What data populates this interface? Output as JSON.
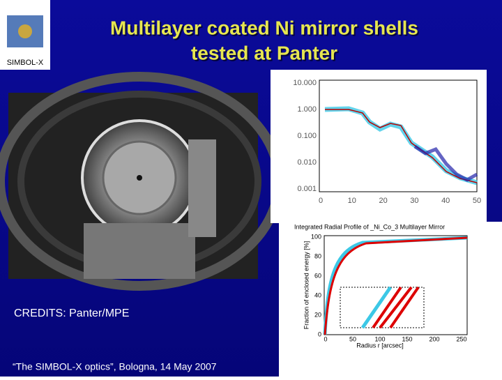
{
  "logo": {
    "label": "SIMBOL-X"
  },
  "header": {
    "title_line1": "Multilayer coated Ni mirror shells",
    "title_line2": "tested at Panter"
  },
  "credits": "CREDITS: Panter/MPE",
  "footer": "“The SIMBOL-X optics”, Bologna, 14 May 2007",
  "top_plot": {
    "y_tick_labels": [
      "10.000",
      "1.000",
      "0.100",
      "0.010",
      "0.001"
    ],
    "x_tick_labels": [
      "0",
      "10",
      "20",
      "30",
      "40",
      "50"
    ]
  },
  "bottom_plot": {
    "title": "Integrated Radial Profile of _Ni_Co_3 Multilayer Mirror",
    "y_label": "Fraction of enclosed energy [%]",
    "x_label": "Radius r [arcsec]",
    "y_tick_labels": [
      "0",
      "20",
      "40",
      "60",
      "80",
      "100"
    ],
    "x_tick_labels": [
      "0",
      "50",
      "100",
      "150",
      "200",
      "250"
    ]
  }
}
